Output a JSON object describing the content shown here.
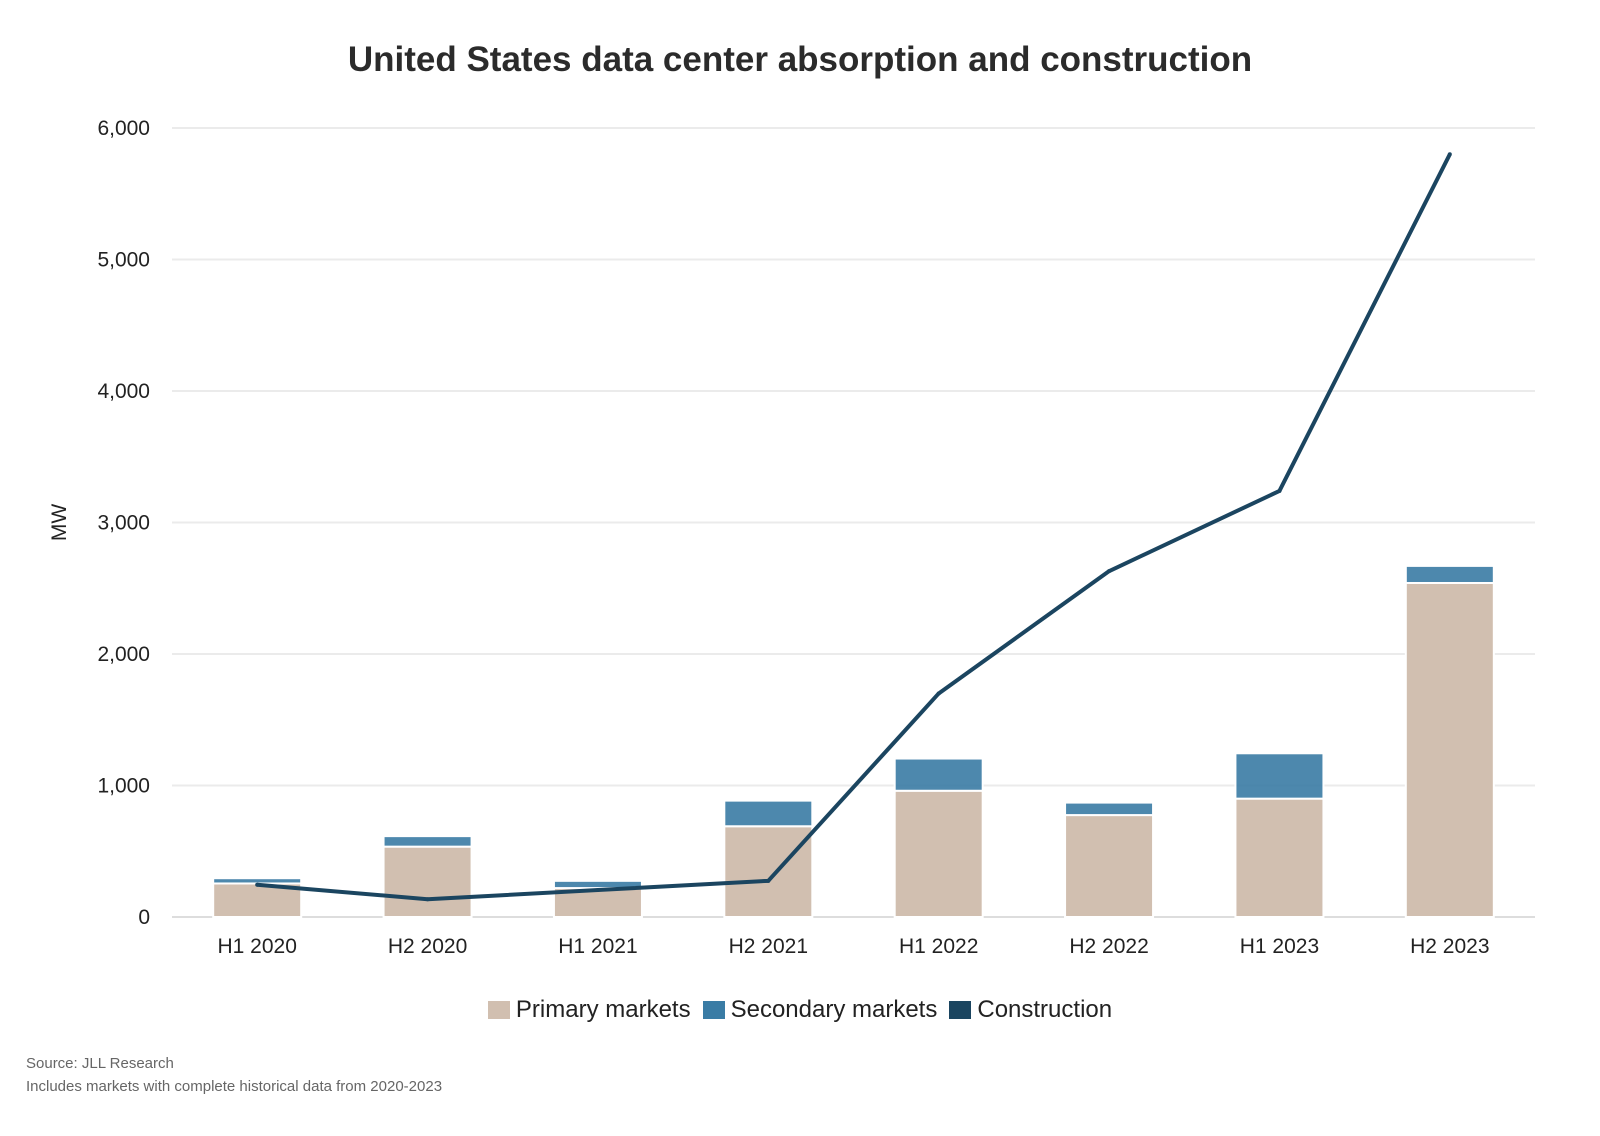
{
  "chart_data": {
    "type": "bar",
    "title": "United States data center absorption and construction",
    "xlabel": "",
    "ylabel": "MW",
    "ylim": [
      0,
      6000
    ],
    "yticks": [
      "0",
      "1,000",
      "2,000",
      "3,000",
      "4,000",
      "5,000",
      "6,000"
    ],
    "grid": true,
    "legend_position": "bottom",
    "categories": [
      "H1 2020",
      "H2 2020",
      "H1 2021",
      "H2 2021",
      "H1 2022",
      "H2 2022",
      "H1 2023",
      "H2 2023"
    ],
    "series": [
      {
        "name": "Primary markets",
        "kind": "stacked-bar",
        "color": "#d1bfb0",
        "values": [
          255,
          535,
          220,
          690,
          960,
          775,
          900,
          2540
        ]
      },
      {
        "name": "Secondary markets",
        "kind": "stacked-bar",
        "color": "#3a7ca5",
        "values": [
          40,
          80,
          55,
          195,
          245,
          95,
          345,
          130
        ]
      },
      {
        "name": "Construction",
        "kind": "line",
        "color": "#1b4560",
        "values": [
          245,
          135,
          205,
          275,
          1700,
          2630,
          3240,
          5800
        ]
      }
    ]
  },
  "footer": {
    "source": "Source: JLL Research",
    "note": "Includes markets with complete historical data from 2020-2023"
  }
}
